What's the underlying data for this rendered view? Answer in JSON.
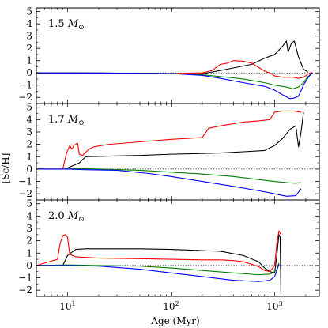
{
  "chart_data": {
    "type": "line",
    "shared_x": {
      "label": "Age (Myr)",
      "scale": "log",
      "range": [
        5,
        2700
      ],
      "ticks": [
        10,
        100,
        1000
      ],
      "tick_labels": [
        "10",
        "10",
        "10"
      ],
      "tick_exponents": [
        "1",
        "2",
        "3"
      ]
    },
    "shared_y": {
      "label": "[Sc/H]",
      "range": [
        -2.5,
        5.3
      ],
      "ticks": [
        -2,
        -1,
        0,
        1,
        2,
        3,
        4,
        5
      ],
      "tick_labels": [
        "−2",
        "−1",
        "0",
        "1",
        "2",
        "3",
        "4",
        "5"
      ]
    },
    "reference_line": {
      "y": 0,
      "style": "dotted"
    },
    "panels": [
      {
        "label_mass": "1.5",
        "label_symbol": "M",
        "label_subscript": "⊙",
        "series": [
          {
            "color": "#000000",
            "points": [
              [
                5,
                0
              ],
              [
                10,
                0
              ],
              [
                30,
                -0.02
              ],
              [
                100,
                -0.05
              ],
              [
                200,
                -0.08
              ],
              [
                300,
                0.2
              ],
              [
                600,
                0.7
              ],
              [
                800,
                1.2
              ],
              [
                1000,
                1.5
              ],
              [
                1200,
                2.2
              ],
              [
                1300,
                2.6
              ],
              [
                1350,
                1.7
              ],
              [
                1450,
                2.4
              ],
              [
                1550,
                2.6
              ],
              [
                1700,
                1.3
              ],
              [
                1900,
                0.3
              ],
              [
                2100,
                0.05
              ]
            ]
          },
          {
            "color": "#ff0000",
            "points": [
              [
                5,
                0
              ],
              [
                10,
                0
              ],
              [
                30,
                -0.02
              ],
              [
                100,
                -0.05
              ],
              [
                200,
                0
              ],
              [
                250,
                0.2
              ],
              [
                300,
                0.7
              ],
              [
                350,
                0.8
              ],
              [
                400,
                1.0
              ],
              [
                500,
                0.95
              ],
              [
                600,
                0.8
              ],
              [
                700,
                0.45
              ],
              [
                800,
                0.15
              ],
              [
                900,
                0
              ],
              [
                1000,
                -0.25
              ],
              [
                1200,
                -0.35
              ],
              [
                1500,
                -0.35
              ],
              [
                1700,
                -0.45
              ],
              [
                1900,
                -0.35
              ],
              [
                2100,
                -0.1
              ],
              [
                2300,
                0.05
              ]
            ]
          },
          {
            "color": "#008000",
            "points": [
              [
                5,
                0
              ],
              [
                10,
                0
              ],
              [
                30,
                -0.02
              ],
              [
                100,
                -0.05
              ],
              [
                200,
                -0.15
              ],
              [
                300,
                -0.3
              ],
              [
                500,
                -0.5
              ],
              [
                800,
                -0.8
              ],
              [
                1000,
                -1.0
              ],
              [
                1300,
                -1.15
              ],
              [
                1500,
                -1.3
              ],
              [
                1700,
                -1.15
              ],
              [
                1900,
                -0.8
              ],
              [
                2100,
                -0.3
              ],
              [
                2300,
                0
              ]
            ]
          },
          {
            "color": "#0000ff",
            "points": [
              [
                5,
                0
              ],
              [
                10,
                0
              ],
              [
                30,
                -0.02
              ],
              [
                100,
                -0.05
              ],
              [
                200,
                -0.2
              ],
              [
                300,
                -0.45
              ],
              [
                500,
                -0.8
              ],
              [
                800,
                -1.1
              ],
              [
                1000,
                -1.4
              ],
              [
                1200,
                -1.8
              ],
              [
                1400,
                -2.1
              ],
              [
                1550,
                -2.05
              ],
              [
                1700,
                -1.9
              ],
              [
                1900,
                -1.0
              ],
              [
                2100,
                -0.4
              ],
              [
                2300,
                0
              ]
            ]
          }
        ]
      },
      {
        "label_mass": "1.7",
        "label_symbol": "M",
        "label_subscript": "⊙",
        "series": [
          {
            "color": "#000000",
            "points": [
              [
                5,
                0
              ],
              [
                9.5,
                0
              ],
              [
                13,
                0.5
              ],
              [
                15,
                1.0
              ],
              [
                50,
                1.1
              ],
              [
                100,
                1.2
              ],
              [
                300,
                1.3
              ],
              [
                500,
                1.4
              ],
              [
                800,
                1.5
              ],
              [
                1000,
                1.9
              ],
              [
                1200,
                2.5
              ],
              [
                1400,
                3.2
              ],
              [
                1600,
                3.5
              ],
              [
                1700,
                1.8
              ],
              [
                1800,
                3.0
              ],
              [
                1900,
                4.6
              ]
            ]
          },
          {
            "color": "#ff0000",
            "points": [
              [
                5,
                0
              ],
              [
                9,
                0
              ],
              [
                9.8,
                1.3
              ],
              [
                10.5,
                1.9
              ],
              [
                11,
                1.6
              ],
              [
                11.5,
                1.9
              ],
              [
                12,
                2.0
              ],
              [
                12.5,
                2.1
              ],
              [
                13,
                1.2
              ],
              [
                14,
                1.1
              ],
              [
                16,
                1.6
              ],
              [
                18,
                1.8
              ],
              [
                25,
                2.0
              ],
              [
                50,
                2.2
              ],
              [
                100,
                2.4
              ],
              [
                200,
                2.55
              ],
              [
                230,
                3.3
              ],
              [
                300,
                3.5
              ],
              [
                500,
                3.8
              ],
              [
                700,
                3.9
              ],
              [
                900,
                4.0
              ],
              [
                1000,
                4.6
              ],
              [
                1200,
                4.7
              ],
              [
                1500,
                4.7
              ],
              [
                1800,
                4.6
              ]
            ]
          },
          {
            "color": "#008000",
            "points": [
              [
                5,
                0
              ],
              [
                10,
                0
              ],
              [
                12,
                0.05
              ],
              [
                20,
                0
              ],
              [
                50,
                -0.1
              ],
              [
                100,
                -0.25
              ],
              [
                200,
                -0.4
              ],
              [
                400,
                -0.6
              ],
              [
                700,
                -0.85
              ],
              [
                1000,
                -1.0
              ],
              [
                1300,
                -1.1
              ],
              [
                1600,
                -1.15
              ],
              [
                1800,
                -1.1
              ]
            ]
          },
          {
            "color": "#0000ff",
            "points": [
              [
                5,
                0
              ],
              [
                10,
                0
              ],
              [
                15,
                -0.05
              ],
              [
                30,
                -0.1
              ],
              [
                60,
                -0.35
              ],
              [
                100,
                -0.6
              ],
              [
                200,
                -1.0
              ],
              [
                400,
                -1.4
              ],
              [
                700,
                -1.75
              ],
              [
                1000,
                -2.0
              ],
              [
                1300,
                -2.2
              ],
              [
                1600,
                -2.15
              ],
              [
                1800,
                -1.6
              ]
            ]
          }
        ]
      },
      {
        "label_mass": "2.0",
        "label_symbol": "M",
        "label_subscript": "⊙",
        "series": [
          {
            "color": "#000000",
            "points": [
              [
                5,
                0
              ],
              [
                9,
                0
              ],
              [
                10,
                0.8
              ],
              [
                12,
                1.3
              ],
              [
                15,
                1.35
              ],
              [
                50,
                1.35
              ],
              [
                100,
                1.3
              ],
              [
                200,
                1.2
              ],
              [
                300,
                1.15
              ],
              [
                500,
                0.8
              ],
              [
                700,
                0.3
              ],
              [
                800,
                -0.2
              ],
              [
                900,
                -0.5
              ],
              [
                1000,
                -0.6
              ],
              [
                1050,
                0.8
              ],
              [
                1100,
                2.5
              ],
              [
                1130,
                2.3
              ],
              [
                1150,
                -2.3
              ]
            ]
          },
          {
            "color": "#ff0000",
            "points": [
              [
                5,
                0
              ],
              [
                8,
                0.5
              ],
              [
                8.5,
                1.8
              ],
              [
                9,
                2.4
              ],
              [
                9.5,
                2.5
              ],
              [
                10,
                2.3
              ],
              [
                10.5,
                0.9
              ],
              [
                12,
                0.7
              ],
              [
                20,
                0.6
              ],
              [
                50,
                0.55
              ],
              [
                100,
                0.5
              ],
              [
                200,
                0.45
              ],
              [
                300,
                0.45
              ],
              [
                400,
                0.4
              ],
              [
                500,
                0.3
              ],
              [
                600,
                0.1
              ],
              [
                700,
                -0.1
              ],
              [
                800,
                -0.4
              ],
              [
                900,
                -0.5
              ],
              [
                1000,
                0
              ],
              [
                1050,
                1.8
              ],
              [
                1100,
                2.8
              ],
              [
                1150,
                2.5
              ]
            ]
          },
          {
            "color": "#008000",
            "points": [
              [
                5,
                0
              ],
              [
                10,
                0.05
              ],
              [
                20,
                0
              ],
              [
                50,
                -0.05
              ],
              [
                100,
                -0.2
              ],
              [
                200,
                -0.4
              ],
              [
                400,
                -0.6
              ],
              [
                700,
                -0.75
              ],
              [
                900,
                -0.7
              ],
              [
                1000,
                -0.5
              ],
              [
                1050,
                -0.3
              ],
              [
                1100,
                0.2
              ]
            ]
          },
          {
            "color": "#0000ff",
            "points": [
              [
                5,
                0
              ],
              [
                10,
                0
              ],
              [
                20,
                -0.05
              ],
              [
                50,
                -0.3
              ],
              [
                100,
                -0.6
              ],
              [
                200,
                -0.9
              ],
              [
                400,
                -1.2
              ],
              [
                700,
                -1.3
              ],
              [
                900,
                -1.2
              ],
              [
                1000,
                -0.9
              ],
              [
                1050,
                -0.4
              ],
              [
                1100,
                0.1
              ]
            ]
          }
        ]
      }
    ]
  }
}
